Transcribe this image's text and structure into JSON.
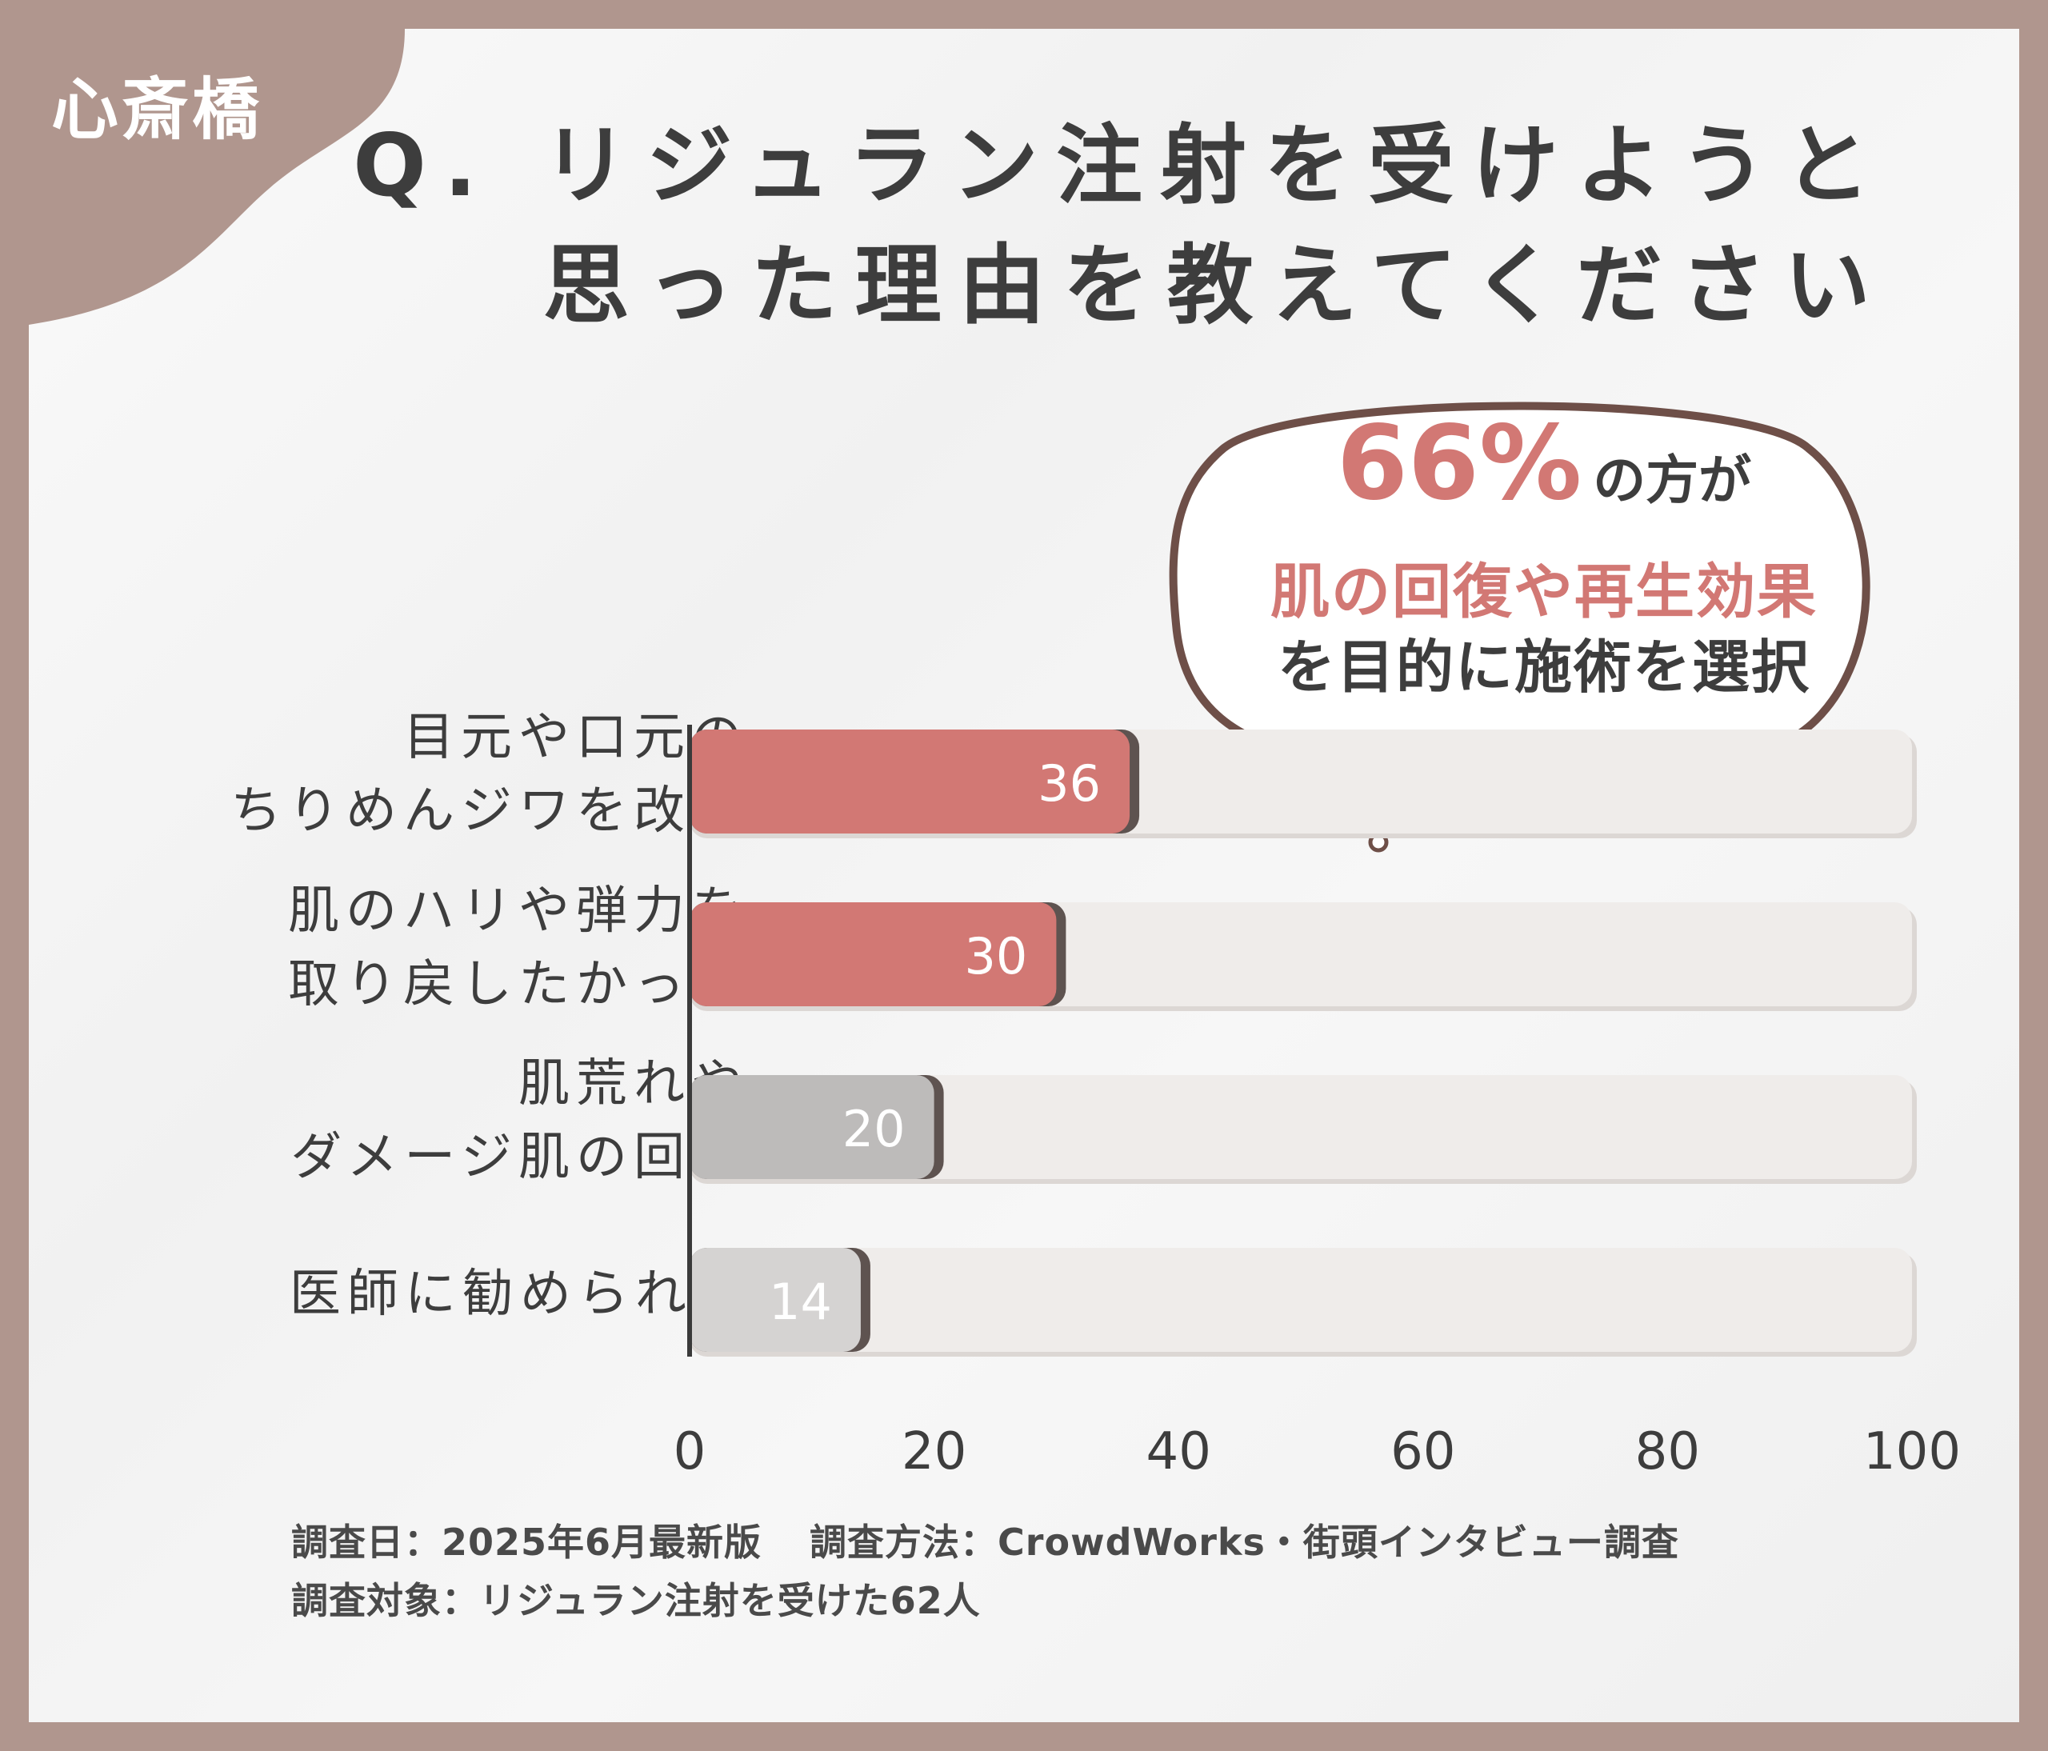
{
  "corner_label": "心斎橋",
  "title": [
    "Q. リジュラン注射を受けようと",
    "思った理由を教えてください"
  ],
  "callout": {
    "percent": "66%",
    "line1_suffix": "の方が",
    "line2": "肌の回復や再生効果",
    "line3": "を目的に施術を選択"
  },
  "footer": {
    "survey_date": "調査日：2025年6月最新版",
    "survey_method": "調査方法：CrowdWorks・街頭インタビュー調査",
    "survey_target": "調査対象：リジュラン注射を受けた62人"
  },
  "colors": {
    "background": "#b0968e",
    "accent": "#d27874",
    "bar_gray_1": "#bdbbba",
    "bar_gray_2": "#d5d3d2",
    "track": "#efecea",
    "text": "#3d3d3d"
  },
  "chart_data": {
    "type": "bar",
    "orientation": "horizontal",
    "categories": [
      [
        "目元や口元の",
        "ちりめんジワを改善"
      ],
      [
        "肌のハリや弾力を",
        "取り戻したかった"
      ],
      [
        "肌荒れや",
        "ダメージ肌の回復"
      ],
      [
        "医師に勧められて"
      ]
    ],
    "values": [
      36,
      30,
      20,
      14
    ],
    "value_labels": [
      "36",
      "30",
      "20",
      "14"
    ],
    "xlim": [
      0,
      100
    ],
    "x_ticks": [
      "0",
      "20",
      "40",
      "60",
      "80",
      "100"
    ],
    "grid": false,
    "xlabel": "",
    "ylabel": ""
  }
}
